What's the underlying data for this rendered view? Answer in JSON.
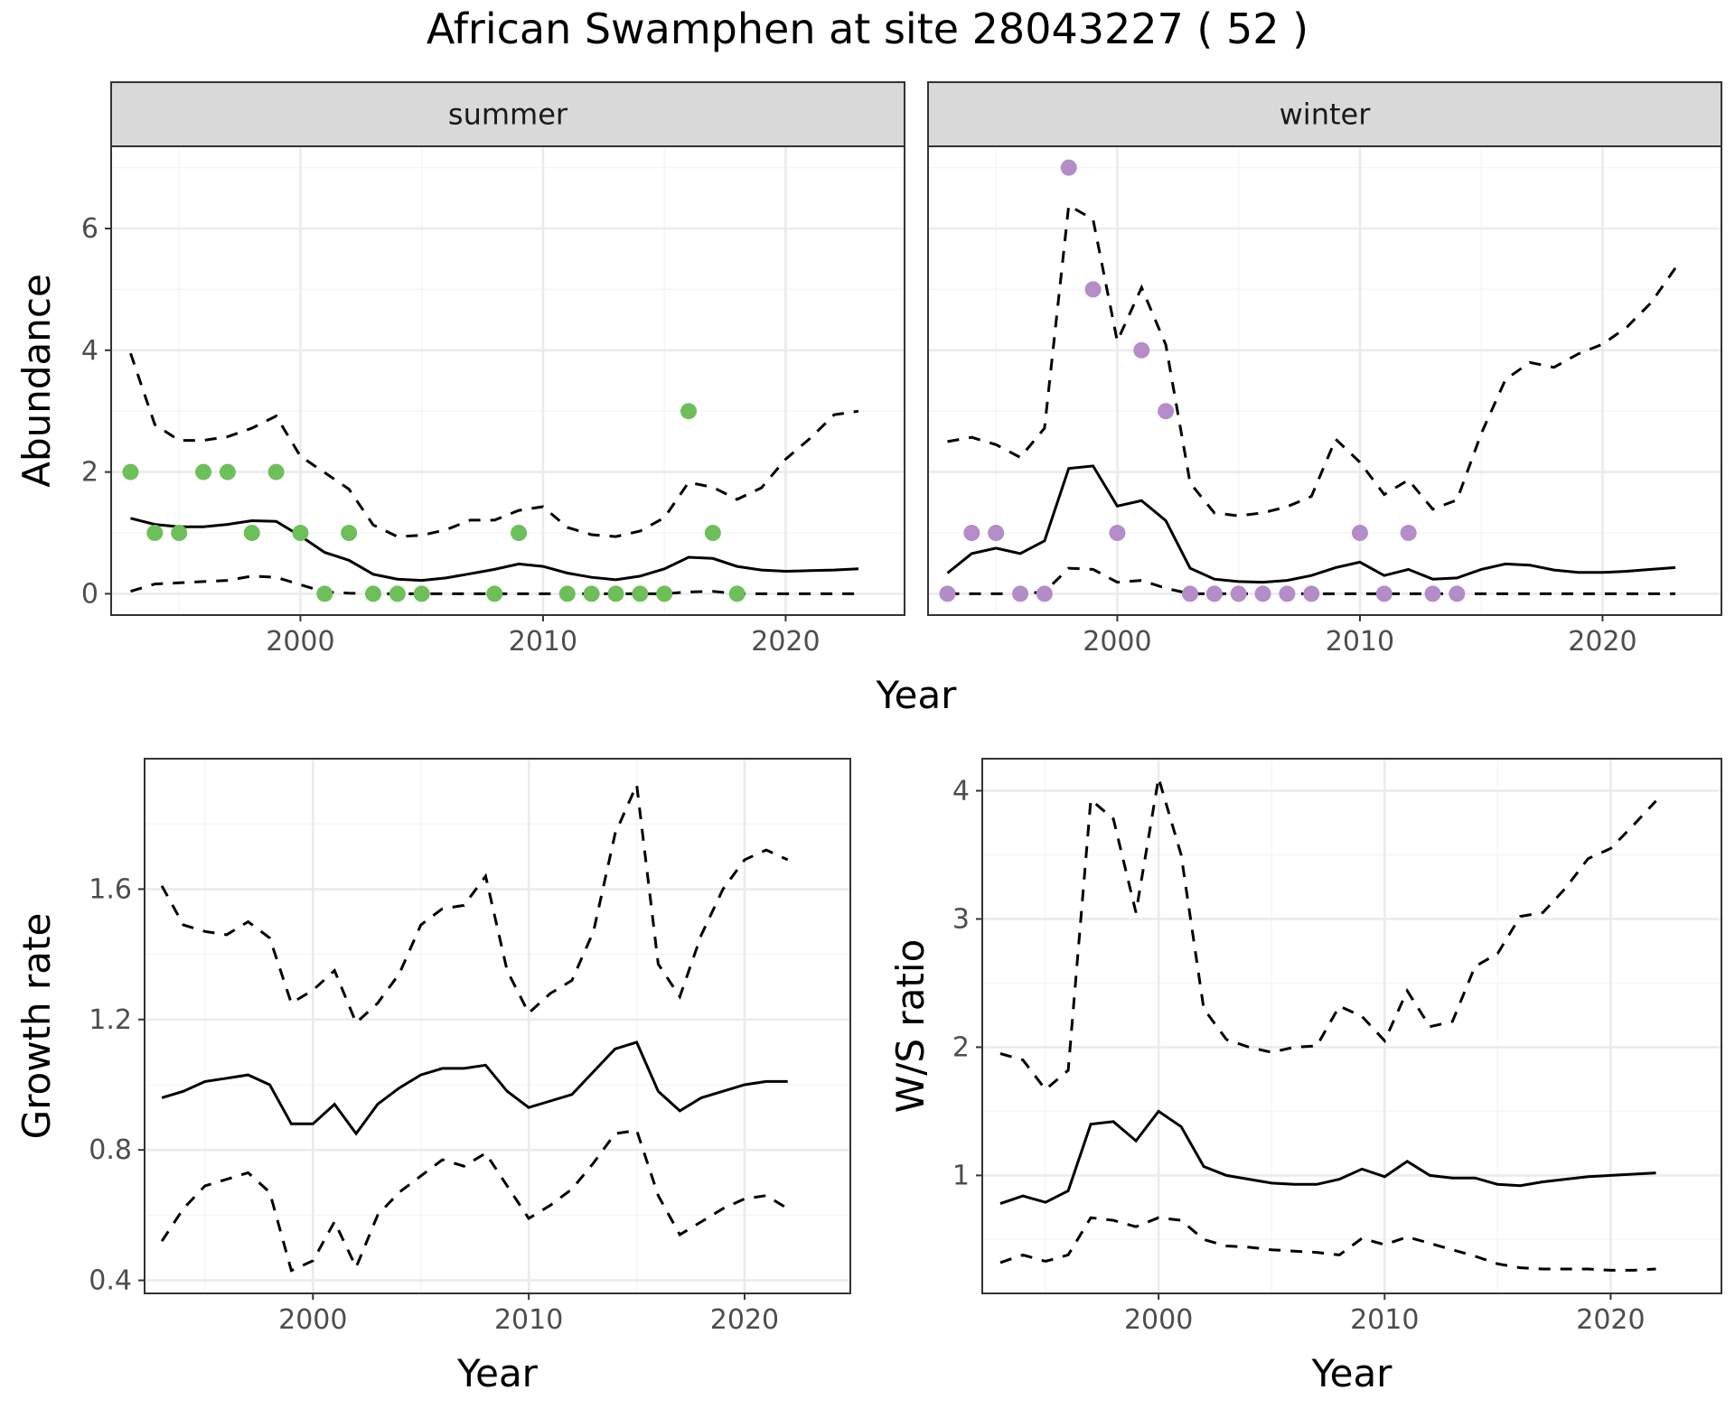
{
  "title": "African Swamphen at site 28043227 ( 52 )",
  "colors": {
    "summer_points": "#6dbf5a",
    "winter_points": "#b48cc8",
    "line": "#000000",
    "grid_major": "#ebebeb",
    "grid_minor": "#f5f5f5",
    "strip_fill": "#d9d9d9",
    "border": "#333333"
  },
  "chart_data": [
    {
      "id": "abundance",
      "type": "line",
      "xlabel": "Year",
      "ylabel": "Abundance",
      "xlim": [
        1992.2,
        2024.9
      ],
      "ylim": [
        -0.35,
        7.35
      ],
      "xticks": [
        2000,
        2010,
        2020
      ],
      "yticks": [
        0,
        2,
        4,
        6
      ],
      "grid": true,
      "panels": [
        {
          "strip": "summer",
          "x": [
            1993,
            1994,
            1995,
            1996,
            1997,
            1998,
            1999,
            2000,
            2001,
            2002,
            2003,
            2004,
            2005,
            2006,
            2007,
            2008,
            2009,
            2010,
            2011,
            2012,
            2013,
            2014,
            2015,
            2016,
            2017,
            2018,
            2019,
            2020,
            2021,
            2022,
            2023
          ],
          "fit": [
            1.24,
            1.14,
            1.1,
            1.1,
            1.14,
            1.2,
            1.19,
            0.95,
            0.68,
            0.55,
            0.32,
            0.24,
            0.22,
            0.26,
            0.33,
            0.4,
            0.49,
            0.45,
            0.34,
            0.27,
            0.23,
            0.29,
            0.41,
            0.6,
            0.58,
            0.45,
            0.39,
            0.37,
            0.38,
            0.39,
            0.41
          ],
          "upper": [
            3.95,
            2.78,
            2.52,
            2.52,
            2.58,
            2.72,
            2.92,
            2.26,
            1.99,
            1.72,
            1.13,
            0.94,
            0.96,
            1.05,
            1.21,
            1.21,
            1.37,
            1.43,
            1.09,
            0.97,
            0.94,
            1.03,
            1.25,
            1.83,
            1.75,
            1.55,
            1.74,
            2.21,
            2.55,
            2.94,
            3.0
          ],
          "lower": [
            0.04,
            0.16,
            0.18,
            0.2,
            0.22,
            0.29,
            0.27,
            0.15,
            0.03,
            0.01,
            0.0,
            0.0,
            0.0,
            0.0,
            0.0,
            0.0,
            0.0,
            0.0,
            0.0,
            0.0,
            0.0,
            0.0,
            0.0,
            0.03,
            0.04,
            0.0,
            0.0,
            0.0,
            0.0,
            0.0,
            0.0
          ],
          "points": {
            "x": [
              1993,
              1994,
              1995,
              1996,
              1997,
              1998,
              1999,
              2000,
              2001,
              2002,
              2003,
              2004,
              2005,
              2008,
              2009,
              2011,
              2012,
              2013,
              2014,
              2015,
              2016,
              2017,
              2018
            ],
            "y": [
              2,
              1,
              1,
              2,
              2,
              1,
              2,
              1,
              0,
              1,
              0,
              0,
              0,
              0,
              1,
              0,
              0,
              0,
              0,
              0,
              3,
              1,
              0
            ]
          },
          "point_color": "#6dbf5a"
        },
        {
          "strip": "winter",
          "x": [
            1993,
            1994,
            1995,
            1996,
            1997,
            1998,
            1999,
            2000,
            2001,
            2002,
            2003,
            2004,
            2005,
            2006,
            2007,
            2008,
            2009,
            2010,
            2011,
            2012,
            2013,
            2014,
            2015,
            2016,
            2017,
            2018,
            2019,
            2020,
            2021,
            2022,
            2023
          ],
          "fit": [
            0.34,
            0.66,
            0.75,
            0.66,
            0.87,
            2.06,
            2.1,
            1.44,
            1.53,
            1.2,
            0.42,
            0.24,
            0.2,
            0.19,
            0.22,
            0.3,
            0.43,
            0.52,
            0.3,
            0.4,
            0.24,
            0.26,
            0.4,
            0.49,
            0.47,
            0.39,
            0.35,
            0.35,
            0.37,
            0.4,
            0.43
          ],
          "upper": [
            2.5,
            2.57,
            2.45,
            2.24,
            2.72,
            6.38,
            6.15,
            4.15,
            5.03,
            4.09,
            1.82,
            1.33,
            1.28,
            1.33,
            1.43,
            1.6,
            2.54,
            2.16,
            1.63,
            1.87,
            1.39,
            1.54,
            2.63,
            3.52,
            3.8,
            3.72,
            3.94,
            4.1,
            4.38,
            4.78,
            5.35
          ],
          "lower": [
            0.0,
            0.0,
            0.0,
            0.0,
            0.03,
            0.42,
            0.4,
            0.19,
            0.22,
            0.09,
            0.0,
            0.0,
            0.0,
            0.0,
            0.0,
            0.0,
            0.0,
            0.0,
            0.0,
            0.0,
            0.0,
            0.0,
            0.0,
            0.0,
            0.0,
            0.0,
            0.0,
            0.0,
            0.0,
            0.0,
            0.0
          ],
          "points": {
            "x": [
              1993,
              1994,
              1995,
              1996,
              1997,
              1998,
              1999,
              2000,
              2001,
              2002,
              2003,
              2004,
              2005,
              2006,
              2007,
              2008,
              2010,
              2011,
              2012,
              2013,
              2014
            ],
            "y": [
              0,
              1,
              1,
              0,
              0,
              7,
              5,
              1,
              4,
              3,
              0,
              0,
              0,
              0,
              0,
              0,
              1,
              0,
              1,
              0,
              0
            ]
          },
          "point_color": "#b48cc8"
        }
      ]
    },
    {
      "id": "growth",
      "type": "line",
      "xlabel": "Year",
      "ylabel": "Growth rate",
      "xlim": [
        1992.2,
        2024.9
      ],
      "ylim": [
        0.36,
        2.0
      ],
      "xticks": [
        2000,
        2010,
        2020
      ],
      "yticks": [
        0.4,
        0.8,
        1.2,
        1.6
      ],
      "ytick_labels": [
        "0.4",
        "0.8",
        "1.2",
        "1.6"
      ],
      "grid": true,
      "x": [
        1993,
        1994,
        1995,
        1996,
        1997,
        1998,
        1999,
        2000,
        2001,
        2002,
        2003,
        2004,
        2005,
        2006,
        2007,
        2008,
        2009,
        2010,
        2011,
        2012,
        2013,
        2014,
        2015,
        2016,
        2017,
        2018,
        2019,
        2020,
        2021,
        2022
      ],
      "fit": [
        0.96,
        0.98,
        1.01,
        1.02,
        1.03,
        1.0,
        0.88,
        0.88,
        0.94,
        0.85,
        0.94,
        0.99,
        1.03,
        1.05,
        1.05,
        1.06,
        0.98,
        0.93,
        0.95,
        0.97,
        1.04,
        1.11,
        1.13,
        0.98,
        0.92,
        0.96,
        0.98,
        1.0,
        1.01,
        1.01
      ],
      "upper": [
        1.61,
        1.49,
        1.47,
        1.46,
        1.5,
        1.45,
        1.25,
        1.29,
        1.35,
        1.19,
        1.25,
        1.34,
        1.49,
        1.54,
        1.55,
        1.64,
        1.35,
        1.22,
        1.28,
        1.32,
        1.47,
        1.77,
        1.92,
        1.37,
        1.27,
        1.46,
        1.6,
        1.69,
        1.72,
        1.69
      ],
      "lower": [
        0.52,
        0.62,
        0.69,
        0.71,
        0.73,
        0.67,
        0.43,
        0.46,
        0.58,
        0.44,
        0.6,
        0.67,
        0.72,
        0.77,
        0.75,
        0.79,
        0.69,
        0.59,
        0.63,
        0.68,
        0.76,
        0.85,
        0.86,
        0.66,
        0.54,
        0.58,
        0.62,
        0.65,
        0.66,
        0.62
      ]
    },
    {
      "id": "ratio",
      "type": "line",
      "xlabel": "Year",
      "ylabel": "W/S ratio",
      "xlim": [
        1992.2,
        2024.9
      ],
      "ylim": [
        0.08,
        4.25
      ],
      "xticks": [
        2000,
        2010,
        2020
      ],
      "yticks": [
        1,
        2,
        3,
        4
      ],
      "grid": true,
      "x": [
        1993,
        1994,
        1995,
        1996,
        1997,
        1998,
        1999,
        2000,
        2001,
        2002,
        2003,
        2004,
        2005,
        2006,
        2007,
        2008,
        2009,
        2010,
        2011,
        2012,
        2013,
        2014,
        2015,
        2016,
        2017,
        2018,
        2019,
        2020,
        2021,
        2022
      ],
      "fit": [
        0.78,
        0.84,
        0.79,
        0.88,
        1.4,
        1.42,
        1.27,
        1.5,
        1.38,
        1.07,
        1.0,
        0.97,
        0.94,
        0.93,
        0.93,
        0.97,
        1.05,
        0.99,
        1.11,
        1.0,
        0.98,
        0.98,
        0.93,
        0.92,
        0.95,
        0.97,
        0.99,
        1.0,
        1.01,
        1.02
      ],
      "upper": [
        1.95,
        1.9,
        1.67,
        1.82,
        3.93,
        3.78,
        3.05,
        4.1,
        3.5,
        2.3,
        2.06,
        2.0,
        1.96,
        2.0,
        2.01,
        2.32,
        2.24,
        2.05,
        2.44,
        2.16,
        2.2,
        2.63,
        2.73,
        3.02,
        3.05,
        3.24,
        3.47,
        3.55,
        3.73,
        3.92
      ],
      "lower": [
        0.32,
        0.38,
        0.33,
        0.38,
        0.67,
        0.65,
        0.6,
        0.67,
        0.65,
        0.5,
        0.45,
        0.44,
        0.42,
        0.41,
        0.4,
        0.38,
        0.51,
        0.46,
        0.52,
        0.47,
        0.42,
        0.37,
        0.31,
        0.28,
        0.27,
        0.27,
        0.27,
        0.26,
        0.26,
        0.27
      ]
    }
  ]
}
